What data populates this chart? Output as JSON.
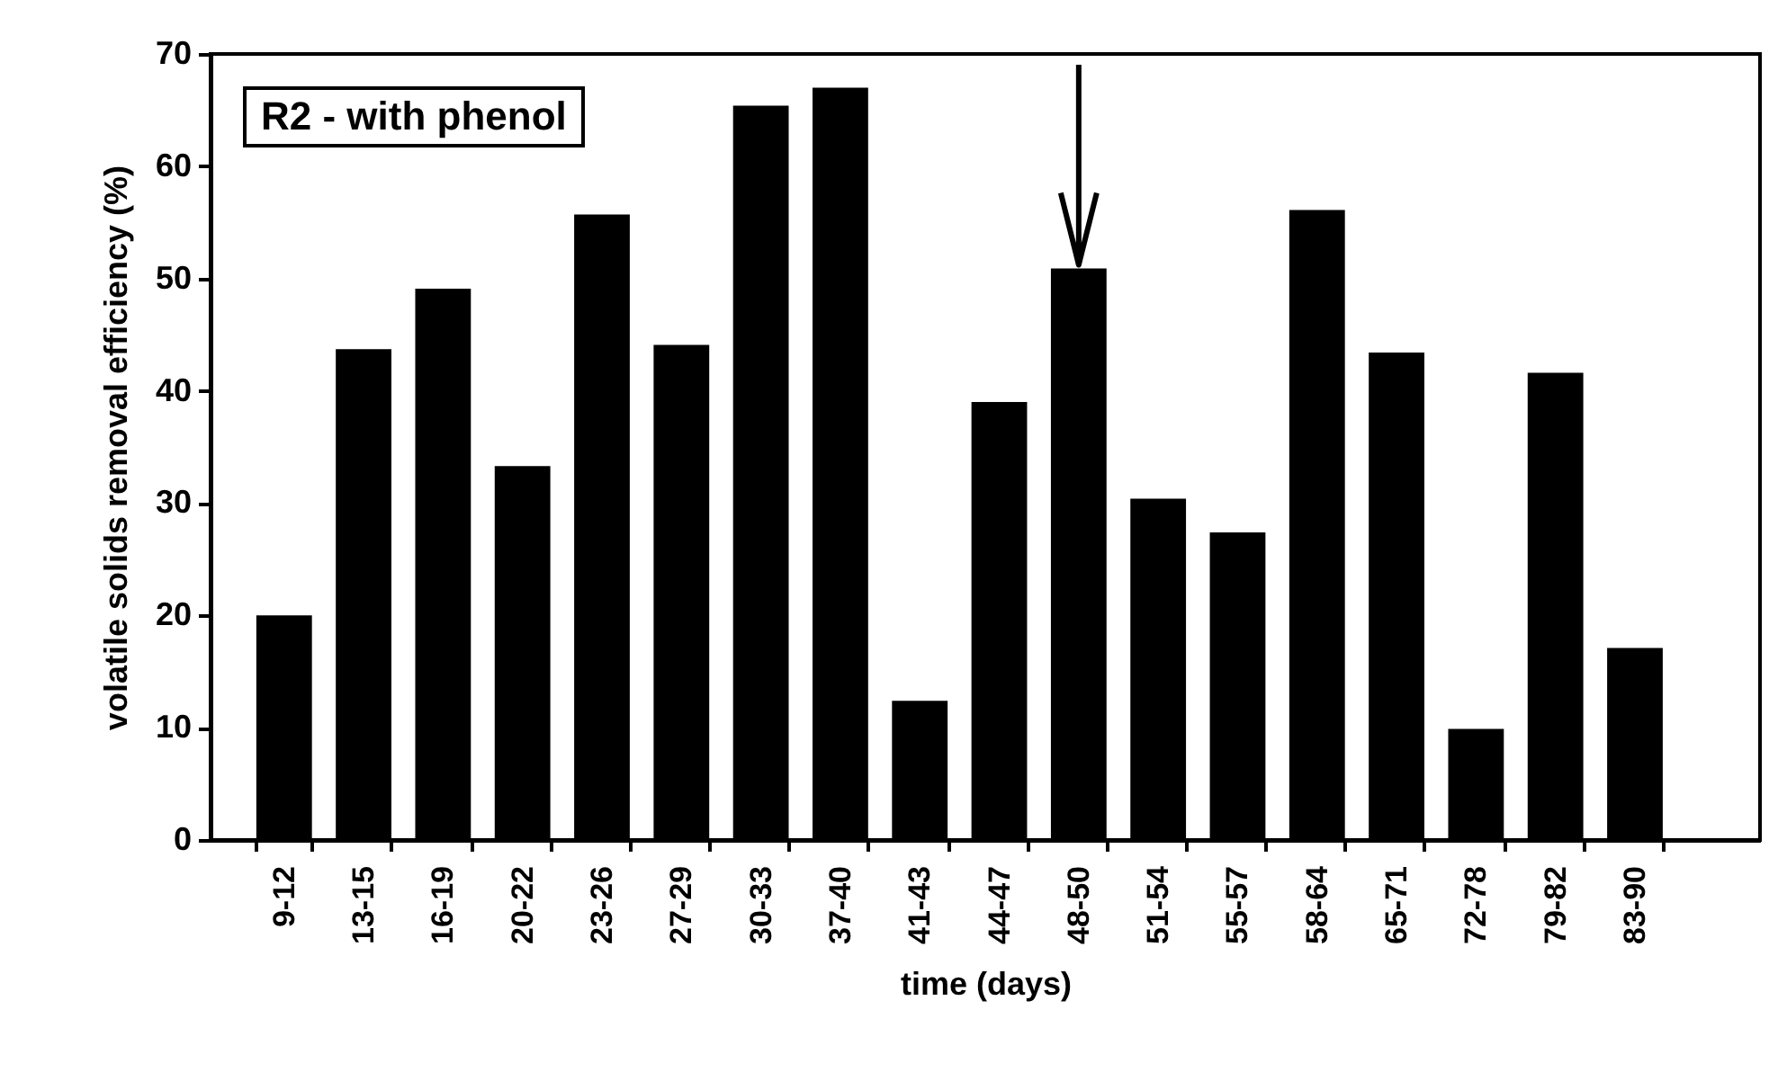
{
  "chart_data": {
    "type": "bar",
    "xlabel": "time (days)",
    "ylabel": "volatile solids removal efficiency (%)",
    "annotations": [
      "R2 - with phenol"
    ],
    "categories": [
      "9-12",
      "13-15",
      "16-19",
      "20-22",
      "23-26",
      "27-29",
      "30-33",
      "37-40",
      "41-43",
      "44-47",
      "48-50",
      "51-54",
      "55-57",
      "58-64",
      "65-71",
      "72-78",
      "79-82",
      "83-90"
    ],
    "values": [
      20.0,
      43.7,
      49.1,
      33.3,
      55.7,
      44.1,
      65.4,
      67.0,
      12.4,
      39.0,
      50.9,
      30.4,
      27.4,
      56.1,
      43.4,
      9.9,
      41.6,
      17.1
    ],
    "color": "#000000",
    "ylim": [
      0,
      70
    ],
    "yticks": [
      0,
      10,
      20,
      30,
      40,
      50,
      60,
      70
    ],
    "grid": false
  }
}
